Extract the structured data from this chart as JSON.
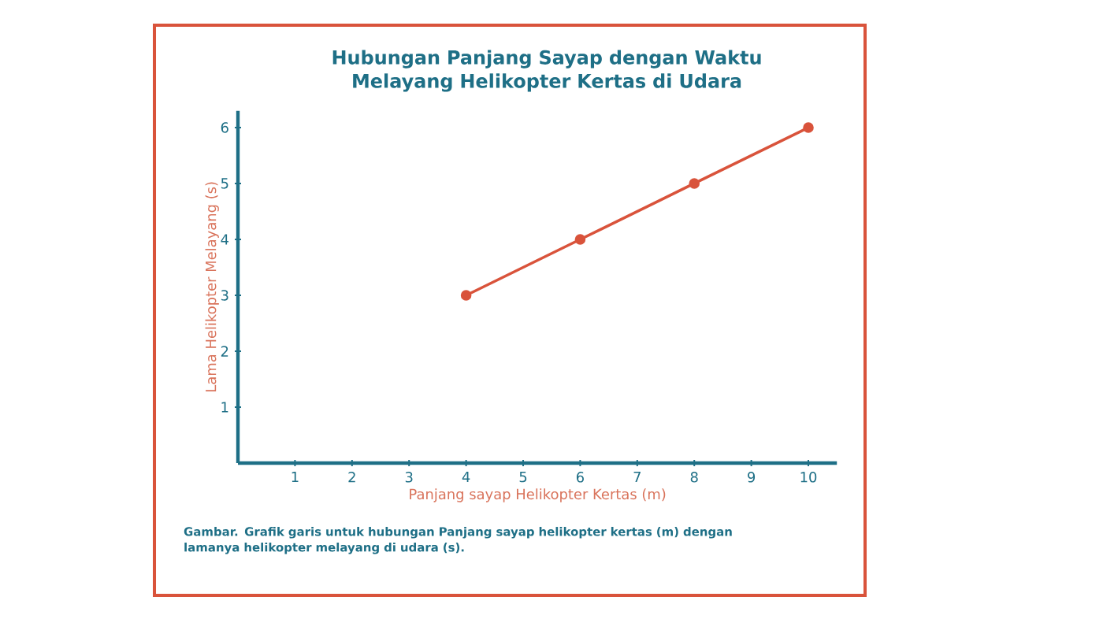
{
  "chart_data": {
    "type": "line",
    "title": "Hubungan Panjang Sayap dengan Waktu Melayang Helikopter Kertas di Udara",
    "xlabel": "Panjang sayap Helikopter Kertas (m)",
    "ylabel": "Lama Helikopter Melayang (s)",
    "x": [
      4,
      6,
      8,
      10
    ],
    "values": [
      3,
      4,
      5,
      6
    ],
    "color": "#d9533b",
    "marker": "circle",
    "line_style": "solid",
    "xlim": [
      0,
      10.5
    ],
    "ylim": [
      0,
      6.3
    ],
    "xticks": [
      1,
      2,
      3,
      4,
      5,
      6,
      7,
      8,
      9,
      10
    ],
    "yticks": [
      1,
      2,
      3,
      4,
      5,
      6
    ],
    "annotations": [
      "Gambar. Grafik garis untuk hubungan Panjang sayap helikopter kertas (m) dengan lamanya helikopter melayang di udara (s)."
    ]
  }
}
